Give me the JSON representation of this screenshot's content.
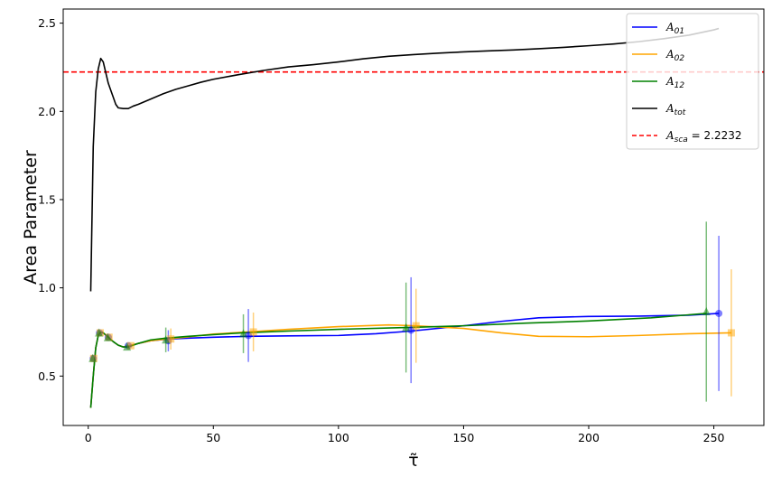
{
  "chart_data": {
    "type": "line",
    "title": "",
    "xlabel": "τ̃",
    "ylabel": "Area Parameter",
    "xlim": [
      -10,
      270
    ],
    "ylim": [
      0.22,
      2.58
    ],
    "xticks": [
      0,
      50,
      100,
      150,
      200,
      250
    ],
    "yticks": [
      0.5,
      1.0,
      1.5,
      2.0,
      2.5
    ],
    "xtick_labels": [
      "0",
      "50",
      "100",
      "150",
      "200",
      "250"
    ],
    "ytick_labels": [
      "0.5",
      "1.0",
      "1.5",
      "2.0",
      "2.5"
    ],
    "grid": false,
    "legend_position": "top-right",
    "series": [
      {
        "key": "a01",
        "legend": "A",
        "legend_sub": "01",
        "color": "#0000ff",
        "marker": "circle",
        "x": [
          1,
          2,
          3,
          4,
          5,
          6,
          8,
          10,
          12,
          14,
          16,
          20,
          25,
          32,
          40,
          50,
          64,
          80,
          100,
          115,
          129,
          150,
          165,
          180,
          200,
          220,
          240,
          252
        ],
        "y": [
          0.32,
          0.5,
          0.66,
          0.73,
          0.75,
          0.745,
          0.72,
          0.695,
          0.675,
          0.665,
          0.67,
          0.685,
          0.7,
          0.71,
          0.715,
          0.72,
          0.725,
          0.728,
          0.73,
          0.74,
          0.755,
          0.785,
          0.81,
          0.83,
          0.838,
          0.84,
          0.845,
          0.855
        ],
        "points": [
          {
            "x": 2,
            "y": 0.6,
            "yerr": 0
          },
          {
            "x": 4.5,
            "y": 0.745,
            "yerr": 0
          },
          {
            "x": 8,
            "y": 0.72,
            "yerr": 0
          },
          {
            "x": 16,
            "y": 0.672,
            "yerr": 0
          },
          {
            "x": 32,
            "y": 0.7,
            "yerr": 0.06
          },
          {
            "x": 64,
            "y": 0.73,
            "yerr": 0.15
          },
          {
            "x": 129,
            "y": 0.76,
            "yerr": 0.3
          },
          {
            "x": 252,
            "y": 0.855,
            "yerr": 0.44
          }
        ]
      },
      {
        "key": "a02",
        "legend": "A",
        "legend_sub": "02",
        "color": "#ffa500",
        "marker": "square",
        "x": [
          1,
          2,
          3,
          4,
          5,
          6,
          8,
          10,
          12,
          14,
          16,
          20,
          25,
          33,
          40,
          50,
          66,
          80,
          100,
          120,
          131,
          150,
          165,
          180,
          200,
          220,
          240,
          257
        ],
        "y": [
          0.32,
          0.5,
          0.66,
          0.73,
          0.75,
          0.745,
          0.72,
          0.695,
          0.675,
          0.665,
          0.67,
          0.685,
          0.7,
          0.712,
          0.722,
          0.738,
          0.752,
          0.765,
          0.78,
          0.79,
          0.785,
          0.77,
          0.745,
          0.725,
          0.723,
          0.73,
          0.74,
          0.745
        ],
        "points": [
          {
            "x": 2.2,
            "y": 0.6,
            "yerr": 0
          },
          {
            "x": 4.8,
            "y": 0.745,
            "yerr": 0
          },
          {
            "x": 8.3,
            "y": 0.72,
            "yerr": 0
          },
          {
            "x": 17,
            "y": 0.672,
            "yerr": 0
          },
          {
            "x": 33,
            "y": 0.71,
            "yerr": 0.06
          },
          {
            "x": 66,
            "y": 0.75,
            "yerr": 0.11
          },
          {
            "x": 131,
            "y": 0.785,
            "yerr": 0.21
          },
          {
            "x": 257,
            "y": 0.745,
            "yerr": 0.36
          }
        ]
      },
      {
        "key": "a12",
        "legend": "A",
        "legend_sub": "12",
        "color": "#008000",
        "marker": "triangle",
        "x": [
          1,
          2,
          3,
          4,
          5,
          6,
          8,
          10,
          12,
          14,
          16,
          20,
          25,
          31,
          40,
          50,
          62,
          80,
          100,
          127,
          150,
          175,
          200,
          225,
          247
        ],
        "y": [
          0.32,
          0.5,
          0.66,
          0.73,
          0.75,
          0.745,
          0.72,
          0.695,
          0.675,
          0.665,
          0.665,
          0.685,
          0.705,
          0.715,
          0.725,
          0.735,
          0.745,
          0.755,
          0.765,
          0.775,
          0.785,
          0.8,
          0.812,
          0.83,
          0.855
        ],
        "points": [
          {
            "x": 1.8,
            "y": 0.6,
            "yerr": 0
          },
          {
            "x": 4.3,
            "y": 0.745,
            "yerr": 0
          },
          {
            "x": 7.8,
            "y": 0.718,
            "yerr": 0
          },
          {
            "x": 15.5,
            "y": 0.665,
            "yerr": 0
          },
          {
            "x": 31,
            "y": 0.705,
            "yerr": 0.07
          },
          {
            "x": 62,
            "y": 0.74,
            "yerr": 0.11
          },
          {
            "x": 127,
            "y": 0.775,
            "yerr": 0.255
          },
          {
            "x": 247,
            "y": 0.865,
            "yerr": 0.51
          }
        ]
      },
      {
        "key": "atot",
        "legend": "A",
        "legend_sub": "tot",
        "color": "#000000",
        "marker": "none",
        "x": [
          1,
          2,
          3,
          4,
          5,
          6,
          7,
          8,
          9,
          10,
          11,
          12,
          14,
          16,
          18,
          20,
          25,
          30,
          35,
          40,
          45,
          50,
          60,
          70,
          80,
          90,
          100,
          110,
          120,
          130,
          140,
          150,
          160,
          170,
          180,
          190,
          200,
          210,
          220,
          230,
          240,
          250,
          252
        ],
        "y": [
          0.98,
          1.8,
          2.11,
          2.24,
          2.3,
          2.28,
          2.22,
          2.16,
          2.12,
          2.08,
          2.04,
          2.02,
          2.016,
          2.016,
          2.03,
          2.04,
          2.07,
          2.1,
          2.125,
          2.145,
          2.165,
          2.182,
          2.208,
          2.232,
          2.252,
          2.265,
          2.28,
          2.298,
          2.312,
          2.322,
          2.33,
          2.337,
          2.343,
          2.348,
          2.355,
          2.363,
          2.372,
          2.382,
          2.395,
          2.412,
          2.432,
          2.462,
          2.47
        ]
      }
    ],
    "reference_line": {
      "y": 2.2232,
      "color": "#ff0000",
      "style": "dashed",
      "legend": "A",
      "legend_sub": "sca",
      "legend_suffix": " = 2.2232"
    }
  }
}
